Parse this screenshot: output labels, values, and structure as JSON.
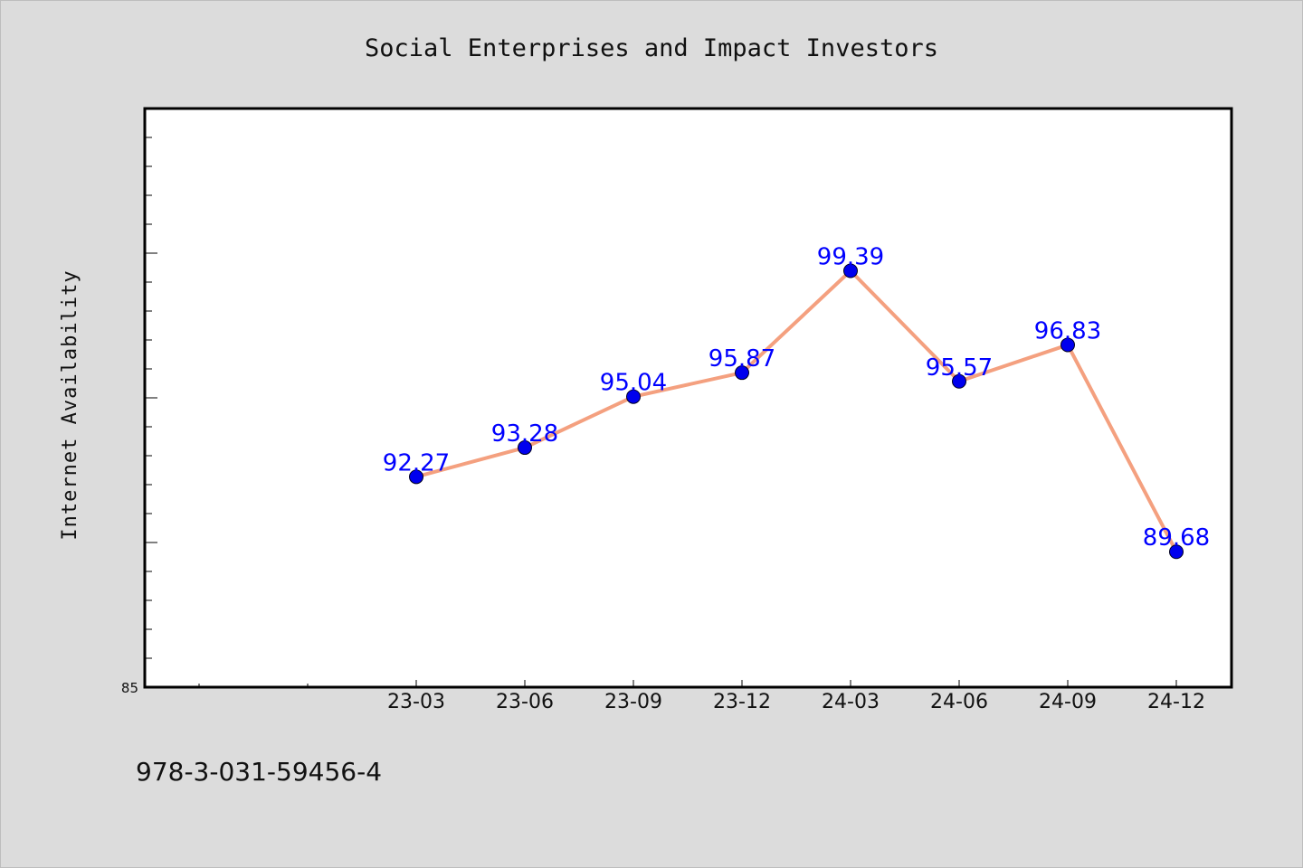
{
  "chart_data": {
    "type": "line",
    "title": "Social Enterprises and Impact Investors",
    "xlabel": "",
    "ylabel": "Internet Availability",
    "categories": [
      "23-03",
      "23-06",
      "23-09",
      "23-12",
      "24-03",
      "24-06",
      "24-09",
      "24-12"
    ],
    "series": [
      {
        "values": [
          92.27,
          93.28,
          95.04,
          95.87,
          99.39,
          95.57,
          96.83,
          89.68
        ]
      }
    ],
    "data_labels": [
      "92.27",
      "93.28",
      "95.04",
      "95.87",
      "99.39",
      "95.57",
      "96.83",
      "89.68"
    ],
    "ylim": [
      85,
      105
    ],
    "yticks_labeled": [
      "85"
    ],
    "grid": false,
    "legend": "none",
    "colors": {
      "line": "#f4a07f",
      "marker": "#0000ee",
      "label": "#0000ff",
      "background": "#dcdcdc",
      "plot_background": "#ffffff"
    }
  },
  "footnote": "978-3-031-59456-4"
}
